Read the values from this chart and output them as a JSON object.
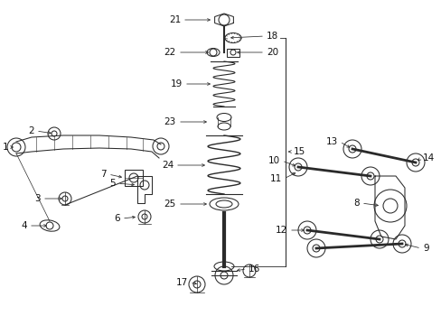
{
  "bg_color": "#ffffff",
  "line_color": "#2a2a2a",
  "fig_width": 4.89,
  "fig_height": 3.6,
  "dpi": 100,
  "lw": 0.75
}
